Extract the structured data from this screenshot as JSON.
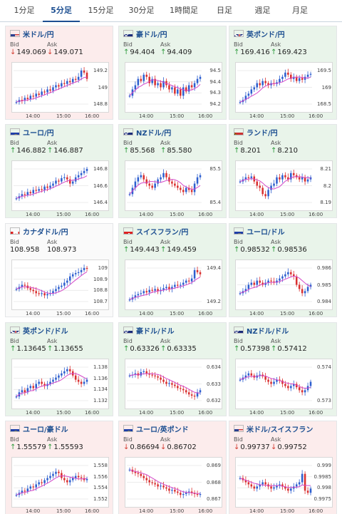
{
  "tabs": [
    {
      "label": "1分足",
      "active": false
    },
    {
      "label": "5分足",
      "active": true
    },
    {
      "label": "15分足",
      "active": false
    },
    {
      "label": "30分足",
      "active": false
    },
    {
      "label": "1時間足",
      "active": false
    },
    {
      "label": "日足",
      "active": false
    },
    {
      "label": "週足",
      "active": false
    },
    {
      "label": "月足",
      "active": false
    }
  ],
  "colors": {
    "up": "#2c9b3b",
    "down": "#d23a2f",
    "candle_up": "#2d5fcf",
    "candle_down": "#d93030",
    "ma": "#d447c8",
    "bull_bg": "#e9f4ea",
    "bear_bg": "#fcecec"
  },
  "labels": {
    "bid": "Bid",
    "ask": "Ask"
  },
  "cards": [
    {
      "pair": "米ドル/円",
      "flag": "us-jp",
      "mood": "bear",
      "bid": "149.069",
      "bid_dir": "down",
      "ask": "149.071",
      "ask_dir": "down",
      "yticks": [
        "149.2",
        "149",
        "148.8"
      ],
      "xticks": [
        "14:00",
        "15:00",
        "16:00"
      ],
      "trend": [
        0.15,
        0.2,
        0.18,
        0.25,
        0.22,
        0.3,
        0.28,
        0.35,
        0.32,
        0.4,
        0.38,
        0.45,
        0.42,
        0.5,
        0.55,
        0.52,
        0.6,
        0.58,
        0.65,
        0.62,
        0.7,
        0.68,
        0.75,
        0.9,
        0.85,
        0.7
      ]
    },
    {
      "pair": "豪ドル/円",
      "flag": "au-jp",
      "mood": "bull",
      "bid": "94.404",
      "bid_dir": "up",
      "ask": "94.409",
      "ask_dir": "up",
      "yticks": [
        "94.5",
        "94.4",
        "94.3",
        "94.2"
      ],
      "xticks": [
        "14:00",
        "15:00",
        "16:00"
      ],
      "trend": [
        0.3,
        0.45,
        0.55,
        0.7,
        0.65,
        0.8,
        0.75,
        0.6,
        0.7,
        0.55,
        0.6,
        0.5,
        0.65,
        0.55,
        0.45,
        0.5,
        0.35,
        0.45,
        0.3,
        0.5,
        0.4,
        0.55,
        0.5,
        0.6,
        0.7,
        0.75
      ]
    },
    {
      "pair": "英ポンド/円",
      "flag": "gb-jp",
      "mood": "bull",
      "bid": "169.416",
      "bid_dir": "up",
      "ask": "169.423",
      "ask_dir": "up",
      "yticks": [
        "169.5",
        "169",
        "168.5"
      ],
      "xticks": [
        "14:00",
        "15:00",
        "16:00"
      ],
      "trend": [
        0.15,
        0.2,
        0.3,
        0.35,
        0.45,
        0.5,
        0.6,
        0.55,
        0.65,
        0.6,
        0.55,
        0.6,
        0.58,
        0.62,
        0.7,
        0.75,
        0.85,
        0.8,
        0.7,
        0.75,
        0.65,
        0.72,
        0.68,
        0.75,
        0.8,
        0.82
      ]
    },
    {
      "pair": "ユーロ/円",
      "flag": "eu-jp",
      "mood": "bull",
      "bid": "146.882",
      "bid_dir": "up",
      "ask": "146.887",
      "ask_dir": "up",
      "yticks": [
        "146.8",
        "146.6",
        "146.4"
      ],
      "xticks": [
        "14:00",
        "15:00",
        "16:00"
      ],
      "trend": [
        0.2,
        0.25,
        0.3,
        0.28,
        0.35,
        0.32,
        0.4,
        0.38,
        0.42,
        0.4,
        0.48,
        0.45,
        0.5,
        0.55,
        0.62,
        0.6,
        0.68,
        0.7,
        0.65,
        0.55,
        0.6,
        0.7,
        0.75,
        0.8,
        0.85,
        0.9
      ]
    },
    {
      "pair": "NZドル/円",
      "flag": "nz-jp",
      "mood": "bull",
      "bid": "85.568",
      "bid_dir": "up",
      "ask": "85.580",
      "ask_dir": "up",
      "yticks": [
        "85.5",
        "85.4"
      ],
      "xticks": [
        "14:00",
        "15:00",
        "16:00"
      ],
      "trend": [
        0.3,
        0.45,
        0.6,
        0.7,
        0.75,
        0.65,
        0.55,
        0.5,
        0.45,
        0.55,
        0.65,
        0.7,
        0.8,
        0.7,
        0.6,
        0.55,
        0.5,
        0.45,
        0.4,
        0.35,
        0.45,
        0.4,
        0.35,
        0.55,
        0.7,
        0.75
      ]
    },
    {
      "pair": "ランド/円",
      "flag": "za-jp",
      "mood": "bull",
      "bid": "8.201",
      "bid_dir": "up",
      "ask": "8.210",
      "ask_dir": "up",
      "yticks": [
        "8.21",
        "8.2",
        "8.19"
      ],
      "xticks": [
        "14:00",
        "15:00",
        "16:00"
      ],
      "trend": [
        0.6,
        0.65,
        0.7,
        0.68,
        0.72,
        0.6,
        0.5,
        0.45,
        0.3,
        0.25,
        0.4,
        0.5,
        0.55,
        0.7,
        0.65,
        0.75,
        0.7,
        0.65,
        0.8,
        0.75,
        0.7,
        0.65,
        0.7,
        0.6,
        0.65,
        0.7
      ]
    },
    {
      "pair": "カナダドル/円",
      "flag": "ca-jp",
      "mood": "flat",
      "bid": "108.958",
      "bid_dir": "none",
      "ask": "108.973",
      "ask_dir": "none",
      "yticks": [
        "109",
        "108.9",
        "108.8",
        "108.7"
      ],
      "xticks": [
        "14:00",
        "15:00",
        "16:00"
      ],
      "trend": [
        0.4,
        0.45,
        0.5,
        0.48,
        0.42,
        0.38,
        0.35,
        0.3,
        0.28,
        0.3,
        0.25,
        0.28,
        0.3,
        0.35,
        0.4,
        0.45,
        0.48,
        0.55,
        0.6,
        0.7,
        0.75,
        0.78,
        0.8,
        0.85,
        0.9,
        0.88
      ]
    },
    {
      "pair": "スイスフラン/円",
      "flag": "ch-jp",
      "mood": "bull",
      "bid": "149.443",
      "bid_dir": "up",
      "ask": "149.459",
      "ask_dir": "up",
      "yticks": [
        "149.4",
        "149.2"
      ],
      "xticks": [
        "14:00",
        "15:00",
        "16:00"
      ],
      "trend": [
        0.15,
        0.2,
        0.25,
        0.28,
        0.3,
        0.35,
        0.32,
        0.38,
        0.36,
        0.4,
        0.35,
        0.38,
        0.42,
        0.45,
        0.4,
        0.45,
        0.5,
        0.48,
        0.5,
        0.55,
        0.6,
        0.58,
        0.65,
        0.85,
        0.8,
        0.75
      ]
    },
    {
      "pair": "ユーロ/ドル",
      "flag": "eu-us",
      "mood": "bull",
      "bid": "0.98532",
      "bid_dir": "up",
      "ask": "0.98536",
      "ask_dir": "up",
      "yticks": [
        "0.986",
        "0.985",
        "0.984"
      ],
      "xticks": [
        "14:00",
        "15:00",
        "16:00"
      ],
      "trend": [
        0.3,
        0.35,
        0.4,
        0.5,
        0.55,
        0.5,
        0.6,
        0.55,
        0.5,
        0.55,
        0.6,
        0.58,
        0.55,
        0.6,
        0.65,
        0.7,
        0.75,
        0.8,
        0.75,
        0.7,
        0.5,
        0.4,
        0.3,
        0.35,
        0.45,
        0.5
      ]
    },
    {
      "pair": "英ポンド/ドル",
      "flag": "gb-us",
      "mood": "bull",
      "bid": "1.13645",
      "bid_dir": "up",
      "ask": "1.13655",
      "ask_dir": "up",
      "yticks": [
        "1.138",
        "1.136",
        "1.134",
        "1.132"
      ],
      "xticks": [
        "14:00",
        "15:00",
        "16:00"
      ],
      "trend": [
        0.2,
        0.3,
        0.35,
        0.3,
        0.4,
        0.45,
        0.4,
        0.5,
        0.55,
        0.5,
        0.45,
        0.5,
        0.55,
        0.6,
        0.65,
        0.7,
        0.75,
        0.8,
        0.85,
        0.8,
        0.7,
        0.6,
        0.55,
        0.5,
        0.55,
        0.6
      ]
    },
    {
      "pair": "豪ドル/ドル",
      "flag": "au-us",
      "mood": "bull",
      "bid": "0.63326",
      "bid_dir": "up",
      "ask": "0.63335",
      "ask_dir": "up",
      "yticks": [
        "0.634",
        "0.633",
        "0.632"
      ],
      "xticks": [
        "14:00",
        "15:00",
        "16:00"
      ],
      "trend": [
        0.7,
        0.72,
        0.75,
        0.7,
        0.78,
        0.8,
        0.75,
        0.72,
        0.7,
        0.68,
        0.65,
        0.6,
        0.55,
        0.5,
        0.52,
        0.48,
        0.45,
        0.4,
        0.38,
        0.35,
        0.3,
        0.25,
        0.22,
        0.2,
        0.3,
        0.35
      ]
    },
    {
      "pair": "NZドル/ドル",
      "flag": "nz-us",
      "mood": "bull",
      "bid": "0.57398",
      "bid_dir": "up",
      "ask": "0.57412",
      "ask_dir": "up",
      "yticks": [
        "0.574",
        "0.573"
      ],
      "xticks": [
        "14:00",
        "15:00",
        "16:00"
      ],
      "trend": [
        0.6,
        0.65,
        0.7,
        0.75,
        0.7,
        0.65,
        0.7,
        0.72,
        0.68,
        0.6,
        0.55,
        0.5,
        0.55,
        0.6,
        0.58,
        0.5,
        0.45,
        0.4,
        0.45,
        0.5,
        0.42,
        0.35,
        0.3,
        0.35,
        0.45,
        0.55
      ]
    },
    {
      "pair": "ユーロ/豪ドル",
      "flag": "eu-au",
      "mood": "bear",
      "bid": "1.55579",
      "bid_dir": "up",
      "ask": "1.55593",
      "ask_dir": "up",
      "yticks": [
        "1.558",
        "1.556",
        "1.554",
        "1.552"
      ],
      "xticks": [
        "14:00",
        "15:00",
        "16:00"
      ],
      "trend": [
        0.2,
        0.25,
        0.3,
        0.28,
        0.35,
        0.4,
        0.38,
        0.45,
        0.5,
        0.48,
        0.55,
        0.6,
        0.65,
        0.7,
        0.75,
        0.72,
        0.6,
        0.55,
        0.5,
        0.55,
        0.6,
        0.65,
        0.62,
        0.6,
        0.55,
        0.58
      ]
    },
    {
      "pair": "ユーロ/英ポンド",
      "flag": "eu-gb",
      "mood": "bear",
      "bid": "0.86694",
      "bid_dir": "down",
      "ask": "0.86702",
      "ask_dir": "down",
      "yticks": [
        "0.869",
        "0.868",
        "0.867"
      ],
      "xticks": [
        "14:00",
        "15:00",
        "16:00"
      ],
      "trend": [
        0.8,
        0.75,
        0.72,
        0.7,
        0.65,
        0.6,
        0.55,
        0.5,
        0.48,
        0.45,
        0.4,
        0.42,
        0.38,
        0.35,
        0.3,
        0.32,
        0.28,
        0.25,
        0.2,
        0.22,
        0.25,
        0.28,
        0.25,
        0.22,
        0.2,
        0.22
      ]
    },
    {
      "pair": "米ドル/スイスフラン",
      "flag": "us-ch",
      "mood": "bear",
      "bid": "0.99737",
      "bid_dir": "down",
      "ask": "0.99752",
      "ask_dir": "down",
      "yticks": [
        "0.999",
        "0.9985",
        "0.998",
        "0.9975"
      ],
      "xticks": [
        "14:00",
        "15:00",
        "16:00"
      ],
      "trend": [
        0.6,
        0.55,
        0.5,
        0.45,
        0.4,
        0.35,
        0.4,
        0.45,
        0.5,
        0.45,
        0.4,
        0.35,
        0.38,
        0.42,
        0.45,
        0.4,
        0.35,
        0.3,
        0.35,
        0.4,
        0.45,
        0.5,
        0.7,
        0.3,
        0.25,
        0.35
      ]
    }
  ]
}
